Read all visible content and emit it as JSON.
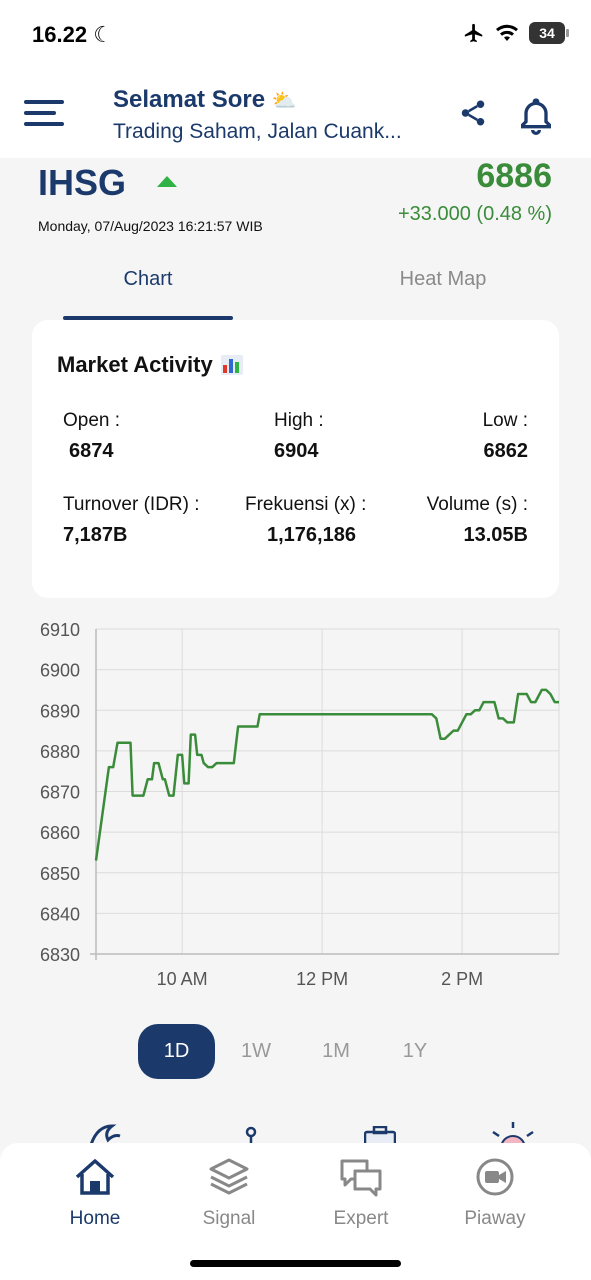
{
  "status_bar": {
    "time": "16.22",
    "battery": "34"
  },
  "header": {
    "greeting": "Selamat Sore",
    "subtitle": "Trading Saham, Jalan Cuank..."
  },
  "index": {
    "name": "IHSG",
    "date": "Monday, 07/Aug/2023 16:21:57 WIB",
    "value": "6886",
    "change": "+33.000 (0.48 %)",
    "trend": "up"
  },
  "tabs": [
    {
      "label": "Chart",
      "active": true
    },
    {
      "label": "Heat Map",
      "active": false
    }
  ],
  "market_activity": {
    "title": "Market Activity",
    "open_label": "Open :",
    "open_value": "6874",
    "high_label": "High :",
    "high_value": "6904",
    "low_label": "Low :",
    "low_value": "6862",
    "turnover_label": "Turnover (IDR) :",
    "turnover_value": "7,187B",
    "frekuensi_label": "Frekuensi (x) :",
    "frekuensi_value": "1,176,186",
    "volume_label": "Volume (s) :",
    "volume_value": "13.05B"
  },
  "chart_data": {
    "type": "line",
    "ylim": [
      6830,
      6910
    ],
    "yticks": [
      "6910",
      "6900",
      "6890",
      "6880",
      "6870",
      "6860",
      "6850",
      "6840",
      "6830"
    ],
    "xticks": [
      "10 AM",
      "12 PM",
      "2 PM"
    ],
    "line_color": "#3a8c3a",
    "grid": true,
    "series": [
      {
        "x": [
          0,
          0.3,
          0.4,
          0.5,
          0.7,
          0.75,
          0.8,
          0.85,
          1.1,
          1.2,
          1.3,
          1.35,
          1.45,
          1.55,
          1.6,
          1.7,
          1.8,
          1.9,
          1.95,
          2.0,
          2.05,
          2.15,
          2.2,
          2.3,
          2.35,
          2.45,
          2.5,
          2.6,
          2.7,
          2.8,
          2.9,
          3.0,
          3.1,
          3.2,
          3.3,
          3.4,
          3.5,
          3.75,
          3.8,
          3.9,
          4.0,
          4.1,
          4.5,
          4.6,
          5.0,
          5.2,
          5.4,
          5.6,
          5.8,
          6.0,
          6.2,
          6.4,
          6.6,
          6.8,
          7.0,
          7.2,
          7.4,
          7.6,
          7.8,
          7.9,
          8.0,
          8.1,
          8.3,
          8.4,
          8.6,
          8.7,
          8.8,
          8.9,
          9.0,
          9.15,
          9.25,
          9.35,
          9.45,
          9.55,
          9.7,
          9.8,
          9.95,
          10.0,
          10.1,
          10.2,
          10.35,
          10.45,
          10.55,
          10.65,
          10.75
        ],
        "y": [
          6853,
          6876,
          6876,
          6882,
          6882,
          6882,
          6882,
          6869,
          6869,
          6873,
          6873,
          6877,
          6877,
          6873,
          6873,
          6869,
          6869,
          6879,
          6879,
          6879,
          6872,
          6872,
          6884,
          6884,
          6879,
          6879,
          6877,
          6876,
          6876,
          6877,
          6877,
          6877,
          6877,
          6877,
          6886,
          6886,
          6886,
          6886,
          6889,
          6889,
          6889,
          6889,
          6889,
          6889,
          6889,
          6889,
          6889,
          6889,
          6889,
          6889,
          6889,
          6889,
          6889,
          6889,
          6889,
          6889,
          6889,
          6889,
          6889,
          6888,
          6883,
          6883,
          6885,
          6885,
          6889,
          6889,
          6890,
          6890,
          6892,
          6892,
          6892,
          6888,
          6888,
          6887,
          6887,
          6894,
          6894,
          6894,
          6892,
          6892,
          6895,
          6895,
          6894,
          6892,
          6892
        ]
      }
    ]
  },
  "ranges": [
    {
      "label": "1D",
      "active": true
    },
    {
      "label": "1W",
      "active": false
    },
    {
      "label": "1M",
      "active": false
    },
    {
      "label": "1Y",
      "active": false
    }
  ],
  "bottom_nav": [
    {
      "label": "Home",
      "icon": "home-icon",
      "active": true
    },
    {
      "label": "Signal",
      "icon": "layers-icon",
      "active": false
    },
    {
      "label": "Expert",
      "icon": "chat-icon",
      "active": false
    },
    {
      "label": "Piaway",
      "icon": "video-icon",
      "active": false
    }
  ],
  "colors": {
    "primary": "#1b3a6b",
    "positive": "#3a8c3a",
    "arrow": "#2fb344"
  }
}
